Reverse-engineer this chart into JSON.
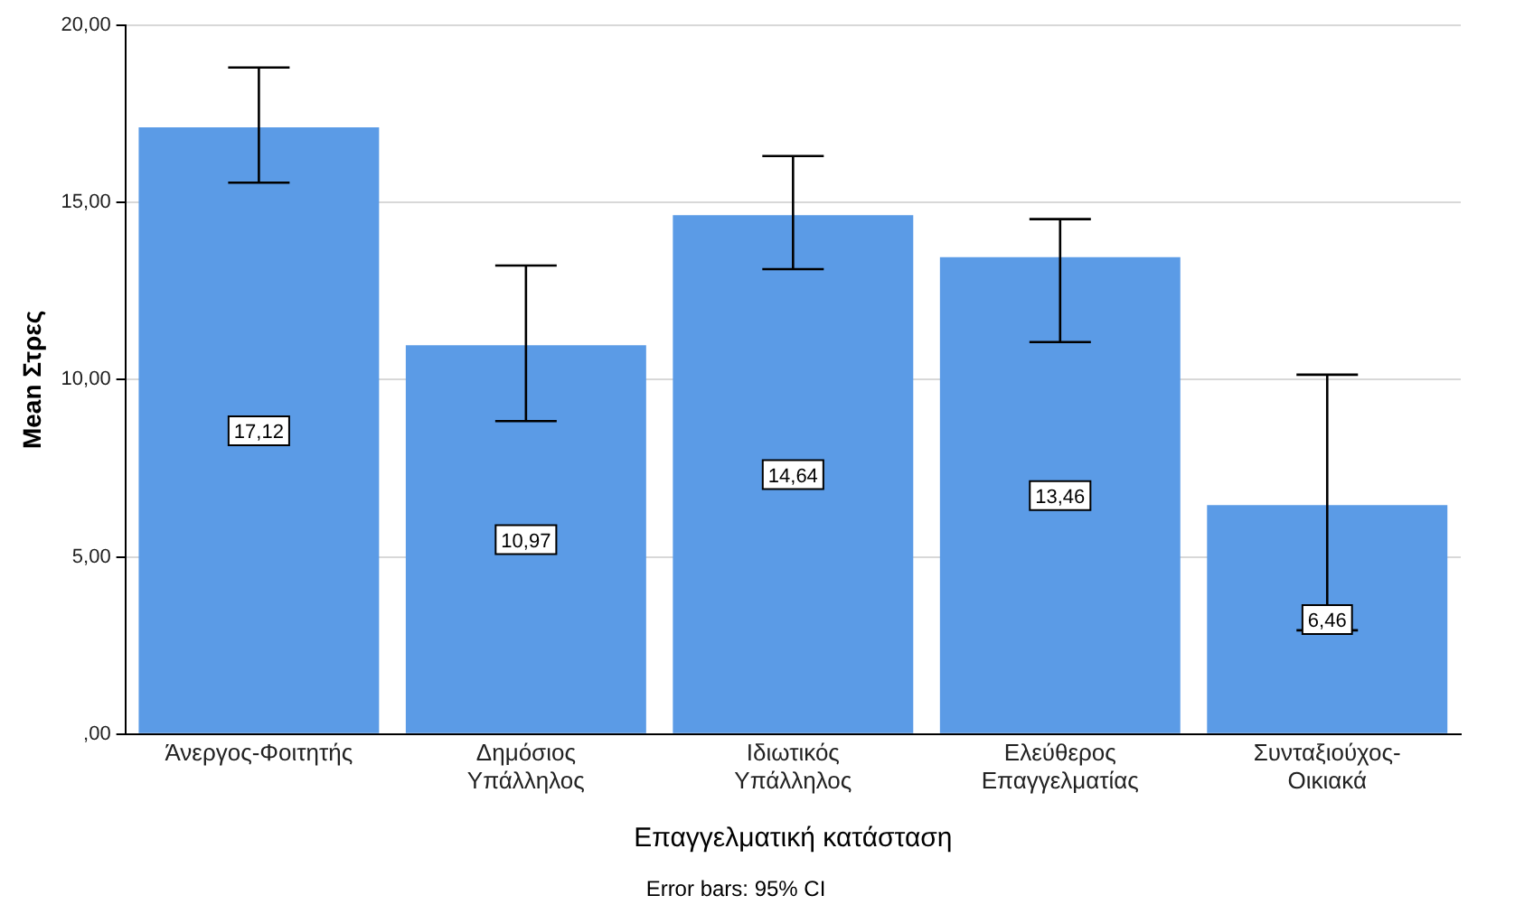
{
  "chart_data": {
    "type": "bar",
    "xlabel": "Επαγγελματική κατάσταση",
    "ylabel": "Mean Στρες",
    "annotations": [
      "Error bars: 95% CI"
    ],
    "categories": [
      "Άνεργος-Φοιτητής",
      "Δημόσιος Υπάλληλος",
      "Ιδιωτικός Υπάλληλος",
      "Ελεύθερος Επαγγελματίας",
      "Συνταξιούχος-Οικιακά"
    ],
    "values": [
      17.12,
      10.97,
      14.64,
      13.46,
      6.46
    ],
    "value_labels": [
      "17,12",
      "10,97",
      "14,64",
      "13,46",
      "6,46"
    ],
    "errors": [
      [
        15.56,
        18.81
      ],
      [
        8.83,
        13.22
      ],
      [
        13.12,
        16.31
      ],
      [
        11.06,
        14.53
      ],
      [
        2.93,
        10.14
      ]
    ],
    "color": "#5b9be6",
    "ylim": [
      0,
      20
    ],
    "yticks": [
      {
        "value": 0,
        "label": ",00"
      },
      {
        "value": 5,
        "label": "5,00"
      },
      {
        "value": 10,
        "label": "10,00"
      },
      {
        "value": 15,
        "label": "15,00"
      },
      {
        "value": 20,
        "label": "20,00"
      }
    ],
    "grid": "y"
  }
}
